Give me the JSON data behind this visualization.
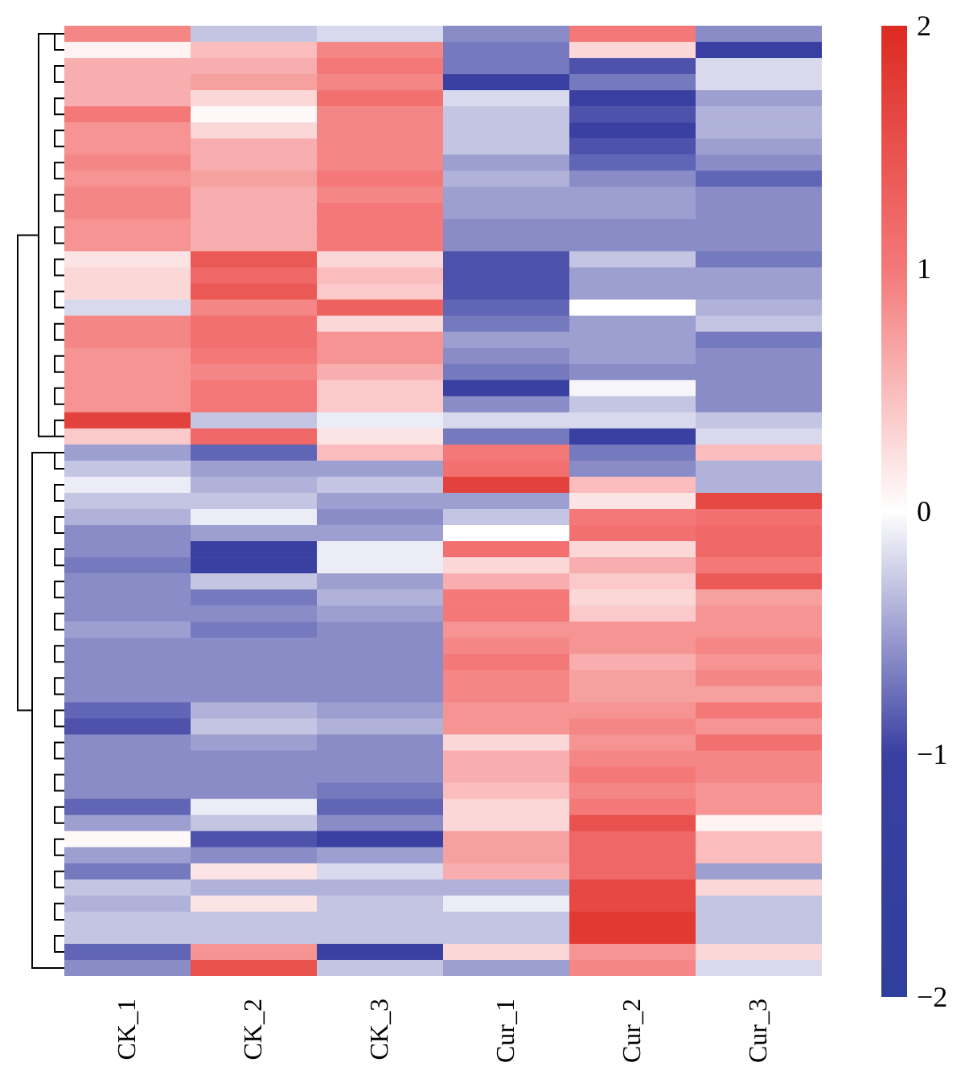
{
  "chart_data": {
    "type": "heatmap",
    "categories": [
      "CK_1",
      "CK_2",
      "CK_3",
      "Cur_1",
      "Cur_2",
      "Cur_3"
    ],
    "y_categories": [
      null,
      null,
      null,
      null,
      null,
      null,
      null,
      null,
      null,
      null,
      null,
      null,
      null,
      null,
      null,
      null,
      null,
      null,
      null,
      null,
      null,
      null,
      null,
      null,
      null,
      null,
      null,
      null,
      null,
      null,
      null,
      null,
      null,
      null,
      null,
      null,
      null,
      null,
      null,
      null,
      null,
      null,
      null,
      null,
      null,
      null,
      null,
      null,
      null,
      null,
      null,
      null,
      null,
      null,
      null,
      null,
      null,
      null,
      null
    ],
    "cells": [
      [
        0.9,
        -0.3,
        -0.2,
        -0.6,
        1.0,
        -0.6
      ],
      [
        0.1,
        0.5,
        0.9,
        -0.7,
        0.3,
        -1.1
      ],
      [
        0.6,
        0.6,
        1.0,
        -0.7,
        -0.9,
        -0.2
      ],
      [
        0.6,
        0.7,
        0.9,
        -1.0,
        -0.7,
        -0.2
      ],
      [
        0.6,
        0.3,
        1.1,
        -0.2,
        -1.0,
        -0.5
      ],
      [
        1.0,
        0.05,
        0.9,
        -0.3,
        -0.9,
        -0.4
      ],
      [
        0.8,
        0.3,
        0.9,
        -0.3,
        -1.0,
        -0.4
      ],
      [
        0.8,
        0.6,
        0.9,
        -0.3,
        -0.9,
        -0.5
      ],
      [
        0.9,
        0.6,
        0.9,
        -0.5,
        -0.8,
        -0.6
      ],
      [
        0.8,
        0.7,
        1.0,
        -0.4,
        -0.6,
        -0.8
      ],
      [
        0.9,
        0.6,
        0.9,
        -0.5,
        -0.5,
        -0.6
      ],
      [
        0.9,
        0.6,
        1.0,
        -0.5,
        -0.5,
        -0.6
      ],
      [
        0.8,
        0.6,
        1.0,
        -0.6,
        -0.6,
        -0.6
      ],
      [
        0.8,
        0.6,
        1.0,
        -0.6,
        -0.6,
        -0.6
      ],
      [
        0.2,
        1.4,
        0.3,
        -0.9,
        -0.3,
        -0.7
      ],
      [
        0.3,
        1.2,
        0.5,
        -0.9,
        -0.5,
        -0.5
      ],
      [
        0.3,
        1.4,
        0.4,
        -0.9,
        -0.5,
        -0.5
      ],
      [
        -0.2,
        0.9,
        1.3,
        -0.8,
        0.0,
        -0.4
      ],
      [
        0.9,
        1.1,
        0.3,
        -0.7,
        -0.5,
        -0.3
      ],
      [
        0.9,
        1.1,
        0.8,
        -0.5,
        -0.5,
        -0.7
      ],
      [
        0.8,
        1.0,
        0.8,
        -0.6,
        -0.5,
        -0.6
      ],
      [
        0.8,
        0.9,
        0.6,
        -0.7,
        -0.6,
        -0.6
      ],
      [
        0.8,
        1.0,
        0.4,
        -1.0,
        -0.05,
        -0.6
      ],
      [
        0.8,
        1.0,
        0.4,
        -0.6,
        -0.3,
        -0.6
      ],
      [
        1.7,
        -0.3,
        -0.1,
        -0.2,
        -0.2,
        -0.3
      ],
      [
        0.4,
        1.2,
        0.2,
        -0.7,
        -1.0,
        -0.2
      ],
      [
        -0.5,
        -0.8,
        0.5,
        1.0,
        -0.7,
        0.5
      ],
      [
        -0.3,
        -0.5,
        -0.5,
        1.1,
        -0.6,
        -0.4
      ],
      [
        -0.1,
        -0.4,
        -0.3,
        1.7,
        0.5,
        -0.4
      ],
      [
        -0.3,
        -0.3,
        -0.5,
        -0.5,
        0.2,
        1.6
      ],
      [
        -0.4,
        -0.1,
        -0.6,
        -0.3,
        1.0,
        1.1
      ],
      [
        -0.6,
        -0.5,
        -0.5,
        0.0,
        1.1,
        1.2
      ],
      [
        -0.6,
        -1.0,
        -0.1,
        1.1,
        0.3,
        1.2
      ],
      [
        -0.7,
        -1.0,
        -0.1,
        0.3,
        0.6,
        1.0
      ],
      [
        -0.6,
        -0.3,
        -0.5,
        0.6,
        0.4,
        1.4
      ],
      [
        -0.6,
        -0.7,
        -0.4,
        1.0,
        0.3,
        0.7
      ],
      [
        -0.6,
        -0.6,
        -0.5,
        1.0,
        0.4,
        0.8
      ],
      [
        -0.5,
        -0.7,
        -0.6,
        0.8,
        0.8,
        0.8
      ],
      [
        -0.6,
        -0.6,
        -0.6,
        0.9,
        0.8,
        0.9
      ],
      [
        -0.6,
        -0.6,
        -0.6,
        1.0,
        0.6,
        0.8
      ],
      [
        -0.6,
        -0.6,
        -0.6,
        0.9,
        0.7,
        0.9
      ],
      [
        -0.6,
        -0.6,
        -0.6,
        0.9,
        0.7,
        0.7
      ],
      [
        -0.8,
        -0.4,
        -0.5,
        0.8,
        0.8,
        1.0
      ],
      [
        -0.9,
        -0.3,
        -0.4,
        0.8,
        0.9,
        0.8
      ],
      [
        -0.6,
        -0.5,
        -0.6,
        0.3,
        0.8,
        1.1
      ],
      [
        -0.6,
        -0.6,
        -0.6,
        0.6,
        0.9,
        0.9
      ],
      [
        -0.6,
        -0.6,
        -0.6,
        0.6,
        1.0,
        0.9
      ],
      [
        -0.6,
        -0.6,
        -0.7,
        0.5,
        0.9,
        0.8
      ],
      [
        -0.8,
        -0.1,
        -0.8,
        0.3,
        1.0,
        0.8
      ],
      [
        -0.5,
        -0.3,
        -0.6,
        0.3,
        1.5,
        0.1
      ],
      [
        0.05,
        -0.9,
        -1.0,
        0.7,
        1.2,
        0.5
      ],
      [
        -0.5,
        -0.6,
        -0.5,
        0.7,
        1.2,
        0.5
      ],
      [
        -0.7,
        0.2,
        -0.2,
        0.6,
        1.2,
        -0.5
      ],
      [
        -0.3,
        -0.4,
        -0.4,
        -0.4,
        1.6,
        0.3
      ],
      [
        -0.4,
        0.2,
        -0.3,
        -0.1,
        1.6,
        -0.3
      ],
      [
        -0.3,
        -0.3,
        -0.3,
        -0.3,
        1.8,
        -0.3
      ],
      [
        -0.3,
        -0.3,
        -0.3,
        -0.3,
        1.8,
        -0.3
      ],
      [
        -0.8,
        0.8,
        -1.0,
        0.3,
        0.8,
        0.3
      ],
      [
        -0.6,
        1.5,
        -0.3,
        -0.5,
        0.9,
        -0.2
      ]
    ],
    "clim": [
      -2,
      2
    ],
    "cticks": [
      {
        "value": -2,
        "label": "−2"
      },
      {
        "value": -1,
        "label": "−1"
      },
      0,
      1,
      2
    ]
  }
}
